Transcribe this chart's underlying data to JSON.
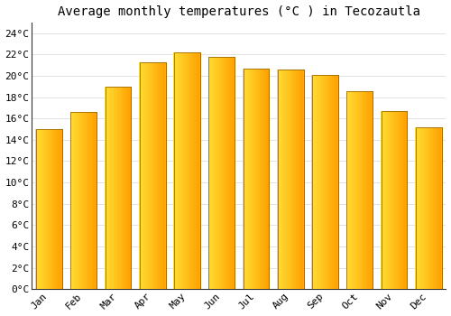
{
  "title": "Average monthly temperatures (°C ) in Tecozautla",
  "months": [
    "Jan",
    "Feb",
    "Mar",
    "Apr",
    "May",
    "Jun",
    "Jul",
    "Aug",
    "Sep",
    "Oct",
    "Nov",
    "Dec"
  ],
  "values": [
    15.0,
    16.6,
    19.0,
    21.3,
    22.2,
    21.8,
    20.7,
    20.6,
    20.1,
    18.6,
    16.7,
    15.2
  ],
  "bar_color_left": "#FFD54F",
  "bar_color_right": "#FFA000",
  "bar_edge_color": "#9E6B00",
  "ylim": [
    0,
    25
  ],
  "yticks": [
    0,
    2,
    4,
    6,
    8,
    10,
    12,
    14,
    16,
    18,
    20,
    22,
    24
  ],
  "background_color": "#FFFFFF",
  "grid_color": "#DDDDDD",
  "title_fontsize": 10,
  "tick_fontsize": 8,
  "figsize": [
    5.0,
    3.5
  ],
  "dpi": 100
}
